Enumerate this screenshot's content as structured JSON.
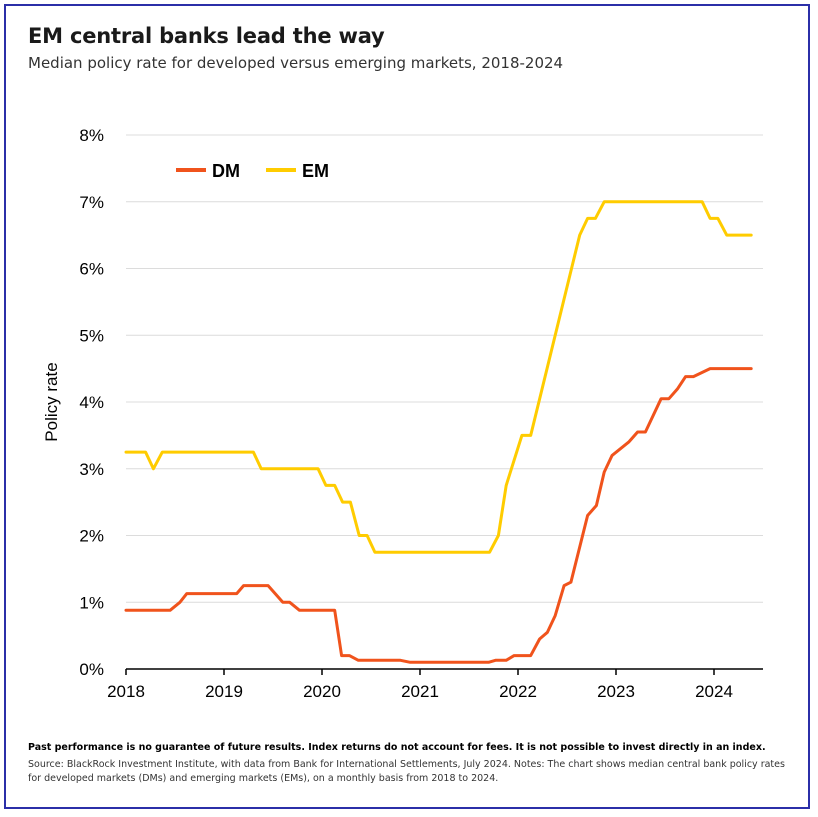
{
  "header": {
    "title": "EM central banks lead the way",
    "subtitle": "Median policy rate for developed versus emerging markets, 2018-2024"
  },
  "footer": {
    "disclaimer": "Past performance is no guarantee of future results. Index returns do not account for fees. It is not possible to invest directly in an index.",
    "source": "Source: BlackRock Investment Institute, with data from Bank for International Settlements, July 2024. Notes: The chart shows median central bank policy rates for developed markets (DMs) and emerging markets (EMs), on a monthly basis from 2018 to 2024."
  },
  "chart_data": {
    "type": "line",
    "title": "EM central banks lead the way",
    "subtitle": "Median policy rate for developed versus emerging markets, 2018-2024",
    "xlabel": "",
    "ylabel": "Policy rate",
    "xlim": [
      2018,
      2024.5
    ],
    "ylim": [
      0,
      8
    ],
    "x_ticks": [
      "2018",
      "2019",
      "2020",
      "2021",
      "2022",
      "2023",
      "2024"
    ],
    "y_ticks": [
      "0%",
      "1%",
      "2%",
      "3%",
      "4%",
      "5%",
      "6%",
      "7%",
      "8%"
    ],
    "grid": true,
    "legend": "top-left",
    "series": [
      {
        "name": "DM",
        "color": "#f0531c",
        "points": [
          [
            2018.0,
            0.88
          ],
          [
            2018.45,
            0.88
          ],
          [
            2018.55,
            1.0
          ],
          [
            2018.62,
            1.13
          ],
          [
            2019.13,
            1.13
          ],
          [
            2019.2,
            1.25
          ],
          [
            2019.45,
            1.25
          ],
          [
            2019.6,
            1.0
          ],
          [
            2019.67,
            1.0
          ],
          [
            2019.77,
            0.88
          ],
          [
            2020.13,
            0.88
          ],
          [
            2020.2,
            0.2
          ],
          [
            2020.28,
            0.2
          ],
          [
            2020.37,
            0.13
          ],
          [
            2020.8,
            0.13
          ],
          [
            2020.9,
            0.1
          ],
          [
            2021.7,
            0.1
          ],
          [
            2021.77,
            0.13
          ],
          [
            2021.88,
            0.13
          ],
          [
            2021.96,
            0.2
          ],
          [
            2022.13,
            0.2
          ],
          [
            2022.22,
            0.45
          ],
          [
            2022.3,
            0.55
          ],
          [
            2022.38,
            0.8
          ],
          [
            2022.47,
            1.25
          ],
          [
            2022.54,
            1.3
          ],
          [
            2022.71,
            2.3
          ],
          [
            2022.8,
            2.45
          ],
          [
            2022.88,
            2.95
          ],
          [
            2022.96,
            3.2
          ],
          [
            2023.13,
            3.4
          ],
          [
            2023.22,
            3.55
          ],
          [
            2023.3,
            3.55
          ],
          [
            2023.46,
            4.05
          ],
          [
            2023.54,
            4.05
          ],
          [
            2023.63,
            4.2
          ],
          [
            2023.71,
            4.38
          ],
          [
            2023.79,
            4.38
          ],
          [
            2023.96,
            4.5
          ],
          [
            2024.38,
            4.5
          ]
        ]
      },
      {
        "name": "EM",
        "color": "#ffcc00",
        "points": [
          [
            2018.0,
            3.25
          ],
          [
            2018.2,
            3.25
          ],
          [
            2018.28,
            3.0
          ],
          [
            2018.37,
            3.25
          ],
          [
            2019.3,
            3.25
          ],
          [
            2019.38,
            3.0
          ],
          [
            2019.96,
            3.0
          ],
          [
            2020.04,
            2.75
          ],
          [
            2020.13,
            2.75
          ],
          [
            2020.21,
            2.5
          ],
          [
            2020.29,
            2.5
          ],
          [
            2020.38,
            2.0
          ],
          [
            2020.46,
            2.0
          ],
          [
            2020.54,
            1.75
          ],
          [
            2021.71,
            1.75
          ],
          [
            2021.8,
            2.0
          ],
          [
            2021.88,
            2.75
          ],
          [
            2022.04,
            3.5
          ],
          [
            2022.13,
            3.5
          ],
          [
            2022.63,
            6.5
          ],
          [
            2022.71,
            6.75
          ],
          [
            2022.79,
            6.75
          ],
          [
            2022.88,
            7.0
          ],
          [
            2023.88,
            7.0
          ],
          [
            2023.96,
            6.75
          ],
          [
            2024.04,
            6.75
          ],
          [
            2024.13,
            6.5
          ],
          [
            2024.38,
            6.5
          ]
        ]
      }
    ]
  }
}
